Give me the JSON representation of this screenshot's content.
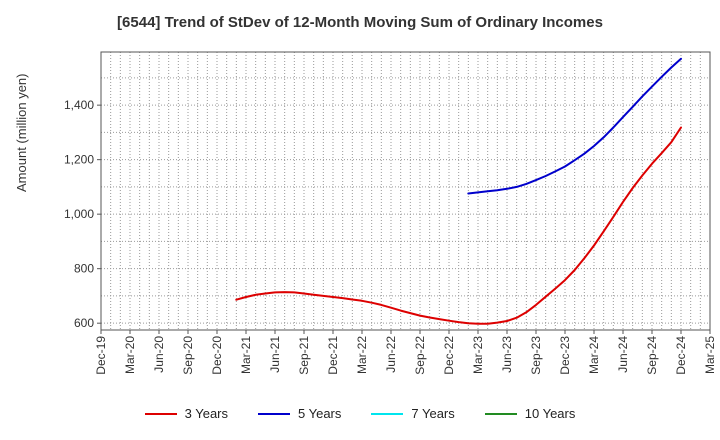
{
  "chart_data": {
    "type": "line",
    "title": "[6544]  Trend of StDev of 12-Month Moving Sum of Ordinary Incomes",
    "xlabel": "",
    "ylabel": "Amount (million yen)",
    "x_ticks": [
      "Dec-19",
      "Mar-20",
      "Jun-20",
      "Sep-20",
      "Dec-20",
      "Mar-21",
      "Jun-21",
      "Sep-21",
      "Dec-21",
      "Mar-22",
      "Jun-22",
      "Sep-22",
      "Dec-22",
      "Mar-23",
      "Jun-23",
      "Sep-23",
      "Dec-23",
      "Mar-24",
      "Jun-24",
      "Sep-24",
      "Dec-24",
      "Mar-25"
    ],
    "y_ticks": [
      600,
      800,
      1000,
      1200,
      1400
    ],
    "y_tick_labels": [
      "600",
      "800",
      "1,000",
      "1,200",
      "1,400"
    ],
    "ylim": [
      575,
      1595
    ],
    "grid": true,
    "legend_position": "bottom",
    "series": [
      {
        "name": "3 Years",
        "color": "#dd0000",
        "x": [
          "Feb-21",
          "Mar-21",
          "Apr-21",
          "May-21",
          "Jun-21",
          "Jul-21",
          "Aug-21",
          "Sep-21",
          "Oct-21",
          "Nov-21",
          "Dec-21",
          "Jan-22",
          "Feb-22",
          "Mar-22",
          "Apr-22",
          "May-22",
          "Jun-22",
          "Jul-22",
          "Aug-22",
          "Sep-22",
          "Oct-22",
          "Nov-22",
          "Dec-22",
          "Jan-23",
          "Feb-23",
          "Mar-23",
          "Apr-23",
          "May-23",
          "Jun-23",
          "Jul-23",
          "Aug-23",
          "Sep-23",
          "Oct-23",
          "Nov-23",
          "Dec-23",
          "Jan-24",
          "Feb-24",
          "Mar-24",
          "Apr-24",
          "May-24",
          "Jun-24",
          "Jul-24",
          "Aug-24",
          "Sep-24",
          "Oct-24",
          "Nov-24",
          "Dec-24"
        ],
        "values": [
          686,
          696,
          704,
          709,
          713,
          714,
          713,
          709,
          704,
          700,
          696,
          692,
          687,
          682,
          675,
          667,
          657,
          646,
          637,
          628,
          621,
          615,
          609,
          604,
          600,
          598,
          598,
          602,
          608,
          620,
          640,
          667,
          697,
          727,
          758,
          795,
          838,
          885,
          937,
          990,
          1045,
          1096,
          1142,
          1185,
          1224,
          1264,
          1318
        ]
      },
      {
        "name": "5 Years",
        "color": "#0000cc",
        "x": [
          "Feb-23",
          "Mar-23",
          "Apr-23",
          "May-23",
          "Jun-23",
          "Jul-23",
          "Aug-23",
          "Sep-23",
          "Oct-23",
          "Nov-23",
          "Dec-23",
          "Jan-24",
          "Feb-24",
          "Mar-24",
          "Apr-24",
          "May-24",
          "Jun-24",
          "Jul-24",
          "Aug-24",
          "Sep-24",
          "Oct-24",
          "Nov-24",
          "Dec-24"
        ],
        "values": [
          1076,
          1080,
          1084,
          1088,
          1093,
          1100,
          1111,
          1125,
          1140,
          1157,
          1175,
          1198,
          1222,
          1250,
          1282,
          1318,
          1356,
          1394,
          1432,
          1468,
          1504,
          1538,
          1570
        ]
      },
      {
        "name": "7 Years",
        "color": "#00e5ee",
        "x": [],
        "values": []
      },
      {
        "name": "10 Years",
        "color": "#228b22",
        "x": [],
        "values": []
      }
    ]
  }
}
